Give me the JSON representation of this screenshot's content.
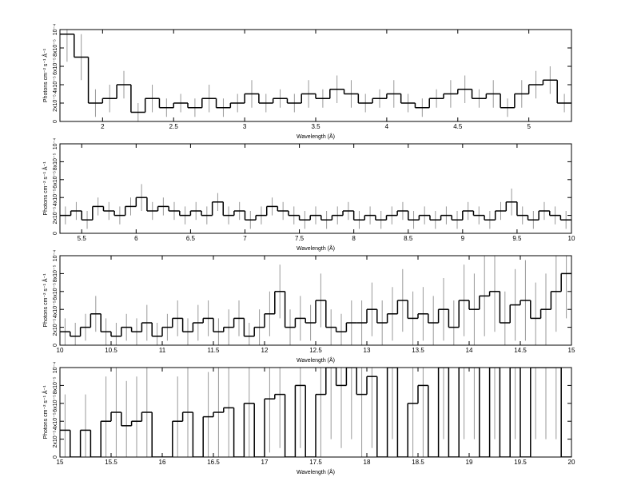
{
  "chart_data": [
    {
      "type": "step",
      "xlabel": "Wavelength (Å)",
      "ylabel": "Photons cm⁻² s⁻¹ Å⁻¹",
      "color": "#000000",
      "error_color": "#999999",
      "xlim": [
        1.7,
        5.3
      ],
      "xticks": [
        2,
        2.5,
        3,
        3.5,
        4,
        4.5,
        5
      ],
      "ylim": [
        0,
        0.0001
      ],
      "yticks": [
        0,
        {
          "value": 2e-05,
          "label": "2x10⁻⁵"
        },
        {
          "value": 4e-05,
          "label": "4x10⁻⁵"
        },
        {
          "value": 6e-05,
          "label": "6x10⁻⁵"
        },
        {
          "value": 8e-05,
          "label": "8x10⁻⁵"
        },
        {
          "value": 0.0001,
          "label": "10⁻⁴"
        }
      ],
      "x": [
        1.75,
        1.85,
        1.95,
        2.05,
        2.15,
        2.25,
        2.35,
        2.45,
        2.55,
        2.65,
        2.75,
        2.85,
        2.95,
        3.05,
        3.15,
        3.25,
        3.35,
        3.45,
        3.55,
        3.65,
        3.75,
        3.85,
        3.95,
        4.05,
        4.15,
        4.25,
        4.35,
        4.45,
        4.55,
        4.65,
        4.75,
        4.85,
        4.95,
        5.05,
        5.15,
        5.25
      ],
      "values": [
        9.5e-05,
        7e-05,
        2e-05,
        2.5e-05,
        4e-05,
        1e-05,
        2.5e-05,
        1.5e-05,
        2e-05,
        1.5e-05,
        2.5e-05,
        1.5e-05,
        2e-05,
        3e-05,
        2e-05,
        2.5e-05,
        2e-05,
        3e-05,
        2.5e-05,
        3.5e-05,
        3e-05,
        2e-05,
        2.5e-05,
        3e-05,
        2e-05,
        1.5e-05,
        2.5e-05,
        3e-05,
        3.5e-05,
        2.5e-05,
        3e-05,
        1.5e-05,
        3e-05,
        4e-05,
        4.5e-05,
        2e-05
      ],
      "errors": [
        3e-05,
        2.5e-05,
        1.5e-05,
        1.5e-05,
        1.5e-05,
        1e-05,
        1.5e-05,
        1e-05,
        1e-05,
        1e-05,
        1.5e-05,
        1e-05,
        1e-05,
        1.5e-05,
        1e-05,
        1e-05,
        1e-05,
        1.5e-05,
        1e-05,
        1.5e-05,
        1.5e-05,
        1e-05,
        1e-05,
        1.5e-05,
        1e-05,
        1e-05,
        1e-05,
        1.5e-05,
        1.5e-05,
        1e-05,
        1.5e-05,
        1e-05,
        1.5e-05,
        1.5e-05,
        1.5e-05,
        1e-05
      ]
    },
    {
      "type": "step",
      "xlabel": "Wavelength (Å)",
      "ylabel": "Photons cm⁻² s⁻¹ Å⁻¹",
      "color": "#000000",
      "error_color": "#999999",
      "xlim": [
        5.3,
        10
      ],
      "xticks": [
        5.5,
        6,
        6.5,
        7,
        7.5,
        8,
        8.5,
        9,
        9.5,
        10
      ],
      "ylim": [
        0,
        0.0001
      ],
      "yticks": [
        0,
        {
          "value": 2e-05,
          "label": "2x10⁻⁵"
        },
        {
          "value": 4e-05,
          "label": "4x10⁻⁵"
        },
        {
          "value": 6e-05,
          "label": "6x10⁻⁵"
        },
        {
          "value": 8e-05,
          "label": "8x10⁻⁵"
        },
        {
          "value": 0.0001,
          "label": "10⁻⁴"
        }
      ],
      "x": [
        5.35,
        5.45,
        5.55,
        5.65,
        5.75,
        5.85,
        5.95,
        6.05,
        6.15,
        6.25,
        6.35,
        6.45,
        6.55,
        6.65,
        6.75,
        6.85,
        6.95,
        7.05,
        7.15,
        7.25,
        7.35,
        7.45,
        7.55,
        7.65,
        7.75,
        7.85,
        7.95,
        8.05,
        8.15,
        8.25,
        8.35,
        8.45,
        8.55,
        8.65,
        8.75,
        8.85,
        8.95,
        9.05,
        9.15,
        9.25,
        9.35,
        9.45,
        9.55,
        9.65,
        9.75,
        9.85,
        9.95
      ],
      "values": [
        2e-05,
        2.5e-05,
        1.5e-05,
        3e-05,
        2.5e-05,
        2e-05,
        3e-05,
        4e-05,
        2.5e-05,
        3e-05,
        2.5e-05,
        2e-05,
        2.5e-05,
        2e-05,
        3.5e-05,
        2e-05,
        2.5e-05,
        1.5e-05,
        2e-05,
        3e-05,
        2.5e-05,
        2e-05,
        1.5e-05,
        2e-05,
        1.5e-05,
        2e-05,
        2.5e-05,
        1.5e-05,
        2e-05,
        1.5e-05,
        2e-05,
        2.5e-05,
        1.5e-05,
        2e-05,
        1.5e-05,
        2e-05,
        1.5e-05,
        2.5e-05,
        2e-05,
        1.5e-05,
        2.5e-05,
        3.5e-05,
        2e-05,
        1.5e-05,
        2.5e-05,
        2e-05,
        1.5e-05
      ],
      "errors": [
        1e-05,
        1e-05,
        1e-05,
        1e-05,
        1e-05,
        1e-05,
        1e-05,
        1.5e-05,
        1e-05,
        1e-05,
        1e-05,
        1e-05,
        1e-05,
        1e-05,
        1e-05,
        1e-05,
        1e-05,
        1e-05,
        1e-05,
        1e-05,
        1e-05,
        1e-05,
        1e-05,
        1e-05,
        1e-05,
        1e-05,
        1e-05,
        1e-05,
        1e-05,
        1e-05,
        1e-05,
        1e-05,
        1e-05,
        1e-05,
        1e-05,
        1e-05,
        1e-05,
        1e-05,
        1e-05,
        1e-05,
        1e-05,
        1.5e-05,
        1e-05,
        1e-05,
        1e-05,
        1e-05,
        1e-05
      ]
    },
    {
      "type": "step",
      "xlabel": "Wavelength (Å)",
      "ylabel": "Photons cm⁻² s⁻¹ Å⁻¹",
      "color": "#000000",
      "error_color": "#999999",
      "xlim": [
        10,
        15
      ],
      "xticks": [
        10,
        10.5,
        11,
        11.5,
        12,
        12.5,
        13,
        13.5,
        14,
        14.5,
        15
      ],
      "ylim": [
        0,
        0.0001
      ],
      "yticks": [
        0,
        {
          "value": 2e-05,
          "label": "2x10⁻⁵"
        },
        {
          "value": 4e-05,
          "label": "4x10⁻⁵"
        },
        {
          "value": 6e-05,
          "label": "6x10⁻⁵"
        },
        {
          "value": 8e-05,
          "label": "8x10⁻⁵"
        },
        {
          "value": 0.0001,
          "label": "10⁻⁴"
        }
      ],
      "x": [
        10.05,
        10.15,
        10.25,
        10.35,
        10.45,
        10.55,
        10.65,
        10.75,
        10.85,
        10.95,
        11.05,
        11.15,
        11.25,
        11.35,
        11.45,
        11.55,
        11.65,
        11.75,
        11.85,
        11.95,
        12.05,
        12.15,
        12.25,
        12.35,
        12.45,
        12.55,
        12.65,
        12.75,
        12.85,
        12.95,
        13.05,
        13.15,
        13.25,
        13.35,
        13.45,
        13.55,
        13.65,
        13.75,
        13.85,
        13.95,
        14.05,
        14.15,
        14.25,
        14.35,
        14.45,
        14.55,
        14.65,
        14.75,
        14.85,
        14.95
      ],
      "values": [
        1.5e-05,
        1e-05,
        2e-05,
        3.5e-05,
        1.5e-05,
        1e-05,
        2e-05,
        1.5e-05,
        2.5e-05,
        1e-05,
        2e-05,
        3e-05,
        1.5e-05,
        2.5e-05,
        3e-05,
        1.5e-05,
        2e-05,
        3e-05,
        1e-05,
        2e-05,
        3.5e-05,
        6e-05,
        2e-05,
        3e-05,
        2.5e-05,
        5e-05,
        2e-05,
        1.5e-05,
        2.5e-05,
        2.5e-05,
        4e-05,
        2.5e-05,
        3.5e-05,
        5e-05,
        3e-05,
        3.5e-05,
        2.5e-05,
        4e-05,
        2e-05,
        5e-05,
        4e-05,
        5.5e-05,
        6e-05,
        2.5e-05,
        4.5e-05,
        5e-05,
        3e-05,
        4e-05,
        6e-05,
        8e-05
      ],
      "errors": [
        1.5e-05,
        1.5e-05,
        1.5e-05,
        2e-05,
        1.5e-05,
        1.5e-05,
        1.5e-05,
        1.5e-05,
        2e-05,
        1.5e-05,
        1.5e-05,
        2e-05,
        1.5e-05,
        2e-05,
        2e-05,
        1.5e-05,
        2e-05,
        2e-05,
        1.5e-05,
        2e-05,
        2.5e-05,
        3e-05,
        2e-05,
        2.5e-05,
        2e-05,
        3e-05,
        2e-05,
        2e-05,
        2.5e-05,
        2.5e-05,
        3e-05,
        2.5e-05,
        3e-05,
        3.5e-05,
        3e-05,
        3e-05,
        3e-05,
        3.5e-05,
        3e-05,
        4e-05,
        4e-05,
        4.5e-05,
        4.5e-05,
        3.5e-05,
        4e-05,
        4.5e-05,
        4e-05,
        4e-05,
        4.5e-05,
        5e-05
      ]
    },
    {
      "type": "step",
      "xlabel": "Wavelength (Å)",
      "ylabel": "Photons cm⁻² s⁻¹ Å⁻¹",
      "color": "#000000",
      "error_color": "#999999",
      "xlim": [
        15,
        20
      ],
      "xticks": [
        15,
        15.5,
        16,
        16.5,
        17,
        17.5,
        18,
        18.5,
        19,
        19.5,
        20
      ],
      "ylim": [
        0,
        0.0001
      ],
      "yticks": [
        0,
        {
          "value": 2e-05,
          "label": "2x10⁻⁵"
        },
        {
          "value": 4e-05,
          "label": "4x10⁻⁵"
        },
        {
          "value": 6e-05,
          "label": "6x10⁻⁵"
        },
        {
          "value": 8e-05,
          "label": "8x10⁻⁵"
        },
        {
          "value": 0.0001,
          "label": "10⁻⁴"
        }
      ],
      "x": [
        15.05,
        15.15,
        15.25,
        15.35,
        15.45,
        15.55,
        15.65,
        15.75,
        15.85,
        15.95,
        16.05,
        16.15,
        16.25,
        16.35,
        16.45,
        16.55,
        16.65,
        16.75,
        16.85,
        16.95,
        17.05,
        17.15,
        17.25,
        17.35,
        17.45,
        17.55,
        17.65,
        17.75,
        17.85,
        17.95,
        18.05,
        18.15,
        18.25,
        18.35,
        18.45,
        18.55,
        18.65,
        18.75,
        18.85,
        18.95,
        19.05,
        19.15,
        19.25,
        19.35,
        19.45,
        19.55,
        19.65,
        19.75,
        19.85,
        19.95
      ],
      "values": [
        3e-05,
        0,
        3e-05,
        0,
        4e-05,
        5e-05,
        3.5e-05,
        4e-05,
        5e-05,
        0,
        0,
        4e-05,
        5e-05,
        0,
        4.5e-05,
        5e-05,
        5.5e-05,
        0,
        6e-05,
        0,
        6.5e-05,
        7e-05,
        0,
        8e-05,
        0,
        7e-05,
        0.0001,
        8e-05,
        0.0001,
        7e-05,
        9e-05,
        0,
        0.0001,
        0,
        6e-05,
        8e-05,
        0,
        0.0001,
        0,
        0.0001,
        0.0001,
        0,
        0.0001,
        0,
        0.0001,
        0,
        0.0001,
        0.0001,
        0.0001,
        0
      ],
      "errors": [
        4e-05,
        0,
        4e-05,
        0,
        5e-05,
        5e-05,
        5e-05,
        5e-05,
        5e-05,
        0,
        0,
        5e-05,
        5e-05,
        0,
        5e-05,
        6e-05,
        6e-05,
        0,
        6e-05,
        0,
        6e-05,
        6e-05,
        0,
        7e-05,
        0,
        7e-05,
        8e-05,
        7e-05,
        8e-05,
        7e-05,
        8e-05,
        0,
        8e-05,
        0,
        7e-05,
        8e-05,
        0,
        8e-05,
        0,
        8e-05,
        8e-05,
        0,
        8e-05,
        0,
        8e-05,
        0,
        8e-05,
        8e-05,
        8e-05,
        0
      ]
    }
  ]
}
